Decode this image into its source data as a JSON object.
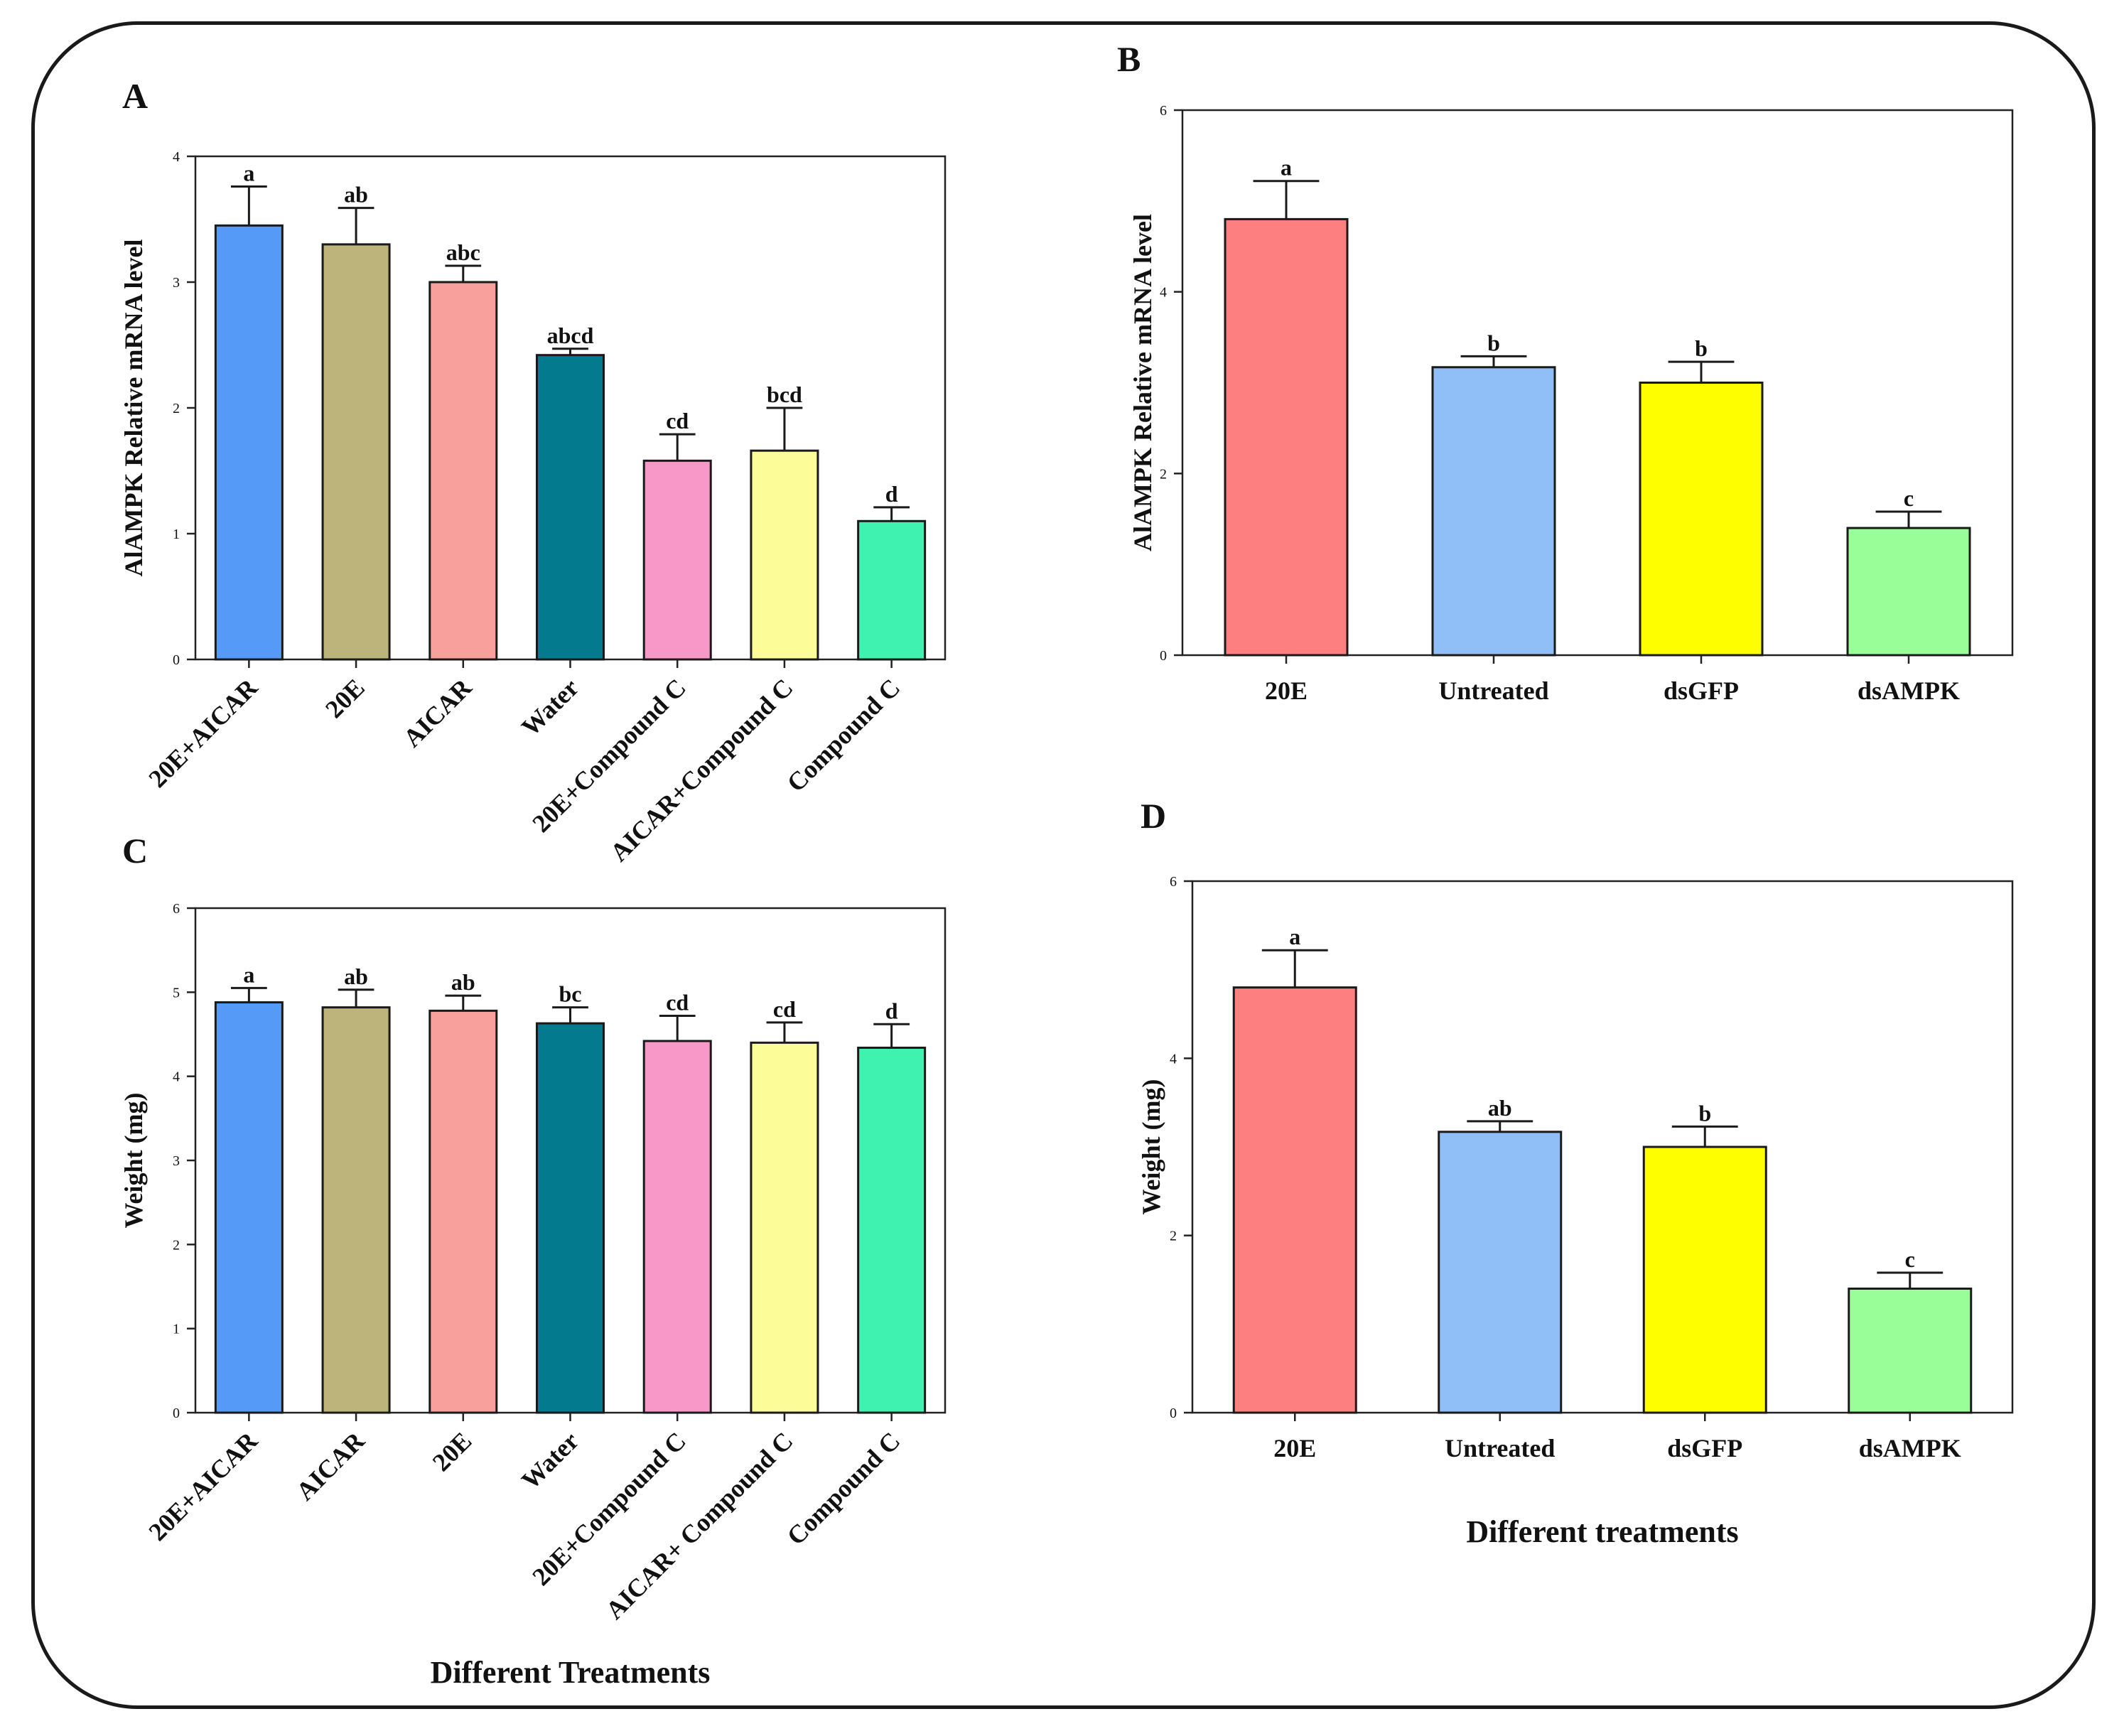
{
  "chart_data": [
    {
      "type": "bar",
      "panel": "A",
      "ylabel": "AlAMPK Relative mRNA level",
      "xlabel": "",
      "ylim": [
        0,
        4
      ],
      "yticks": [
        "0",
        "1",
        "2",
        "3",
        "4"
      ],
      "categories": [
        "20E+AICAR",
        "20E",
        "AICAR",
        "Water",
        "20E+Compound C",
        "AICAR+Compound C",
        "Compound C"
      ],
      "values": [
        3.45,
        3.3,
        3.0,
        2.42,
        1.58,
        1.66,
        1.1
      ],
      "errors": [
        0.31,
        0.29,
        0.13,
        0.05,
        0.21,
        0.34,
        0.11
      ],
      "letters": [
        "a",
        "ab",
        "abc",
        "abcd",
        "cd",
        "bcd",
        "d"
      ],
      "colors": [
        "#559af7",
        "#bdb47c",
        "#f8a19c",
        "#047a8f",
        "#f898c8",
        "#fcfc98",
        "#3ff2b0"
      ]
    },
    {
      "type": "bar",
      "panel": "B",
      "ylabel": "AlAMPK Relative mRNA level",
      "xlabel": "",
      "ylim": [
        0,
        6
      ],
      "yticks": [
        "0",
        "2",
        "4",
        "6"
      ],
      "categories": [
        "20E",
        "Untreated",
        "dsGFP",
        "dsAMPK"
      ],
      "values": [
        4.8,
        3.17,
        3.0,
        1.4
      ],
      "errors": [
        0.42,
        0.12,
        0.23,
        0.18
      ],
      "letters": [
        "a",
        "b",
        "b",
        "c"
      ],
      "colors": [
        "#fe7f7f",
        "#90bff8",
        "#fefe00",
        "#9afe98"
      ]
    },
    {
      "type": "bar",
      "panel": "C",
      "ylabel": "Weight (mg)",
      "xlabel": "Different Treatments",
      "ylim": [
        0,
        6
      ],
      "yticks": [
        "0",
        "1",
        "2",
        "3",
        "4",
        "5",
        "6"
      ],
      "categories": [
        "20E+AICAR",
        "AICAR",
        "20E",
        "Water",
        "20E+Compound C",
        "AICAR+ Compound C",
        "Compound C"
      ],
      "values": [
        4.88,
        4.82,
        4.78,
        4.63,
        4.42,
        4.4,
        4.34
      ],
      "errors": [
        0.17,
        0.21,
        0.18,
        0.19,
        0.3,
        0.24,
        0.28
      ],
      "letters": [
        "a",
        "ab",
        "ab",
        "bc",
        "cd",
        "cd",
        "d"
      ],
      "colors": [
        "#559af7",
        "#bdb47c",
        "#f8a19c",
        "#047a8f",
        "#f898c8",
        "#fcfc98",
        "#3ff2b0"
      ]
    },
    {
      "type": "bar",
      "panel": "D",
      "ylabel": "Weight (mg)",
      "xlabel": "Different treatments",
      "ylim": [
        0,
        6
      ],
      "yticks": [
        "0",
        "2",
        "4",
        "6"
      ],
      "categories": [
        "20E",
        "Untreated",
        "dsGFP",
        "dsAMPK"
      ],
      "values": [
        4.8,
        3.17,
        3.0,
        1.4
      ],
      "errors": [
        0.42,
        0.12,
        0.23,
        0.18
      ],
      "letters": [
        "a",
        "ab",
        "b",
        "c"
      ],
      "colors": [
        "#fe7f7f",
        "#90bff8",
        "#fefe00",
        "#9afe98"
      ]
    }
  ]
}
